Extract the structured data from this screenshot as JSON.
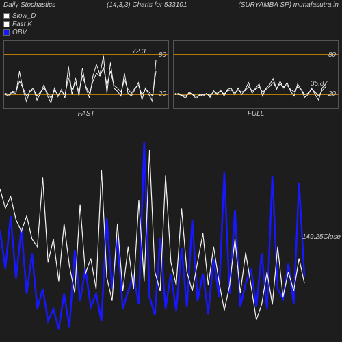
{
  "header": {
    "title": "Daily Stochastics",
    "params": "(14,3,3) Charts for 533101",
    "symbol": "(SURYAMBA SP) munafasutra.in"
  },
  "legend": {
    "slow_d": {
      "label": "Slow_D",
      "color": "#ffffff"
    },
    "fast_k": {
      "label": "Fast K",
      "color": "#ffffff"
    },
    "obv": {
      "label": "OBV",
      "color": "#1818ff"
    }
  },
  "colors": {
    "bg": "#1e1d1d",
    "panel_border": "#555555",
    "grid_ref": "#cc8800",
    "text": "#cccccc",
    "line_white": "#f5f5f5",
    "line_blue": "#1818ff"
  },
  "fast_panel": {
    "label": "FAST",
    "ylim": [
      0,
      100
    ],
    "ref_lines": [
      20,
      80
    ],
    "value_label": "72.3",
    "axis_ticks": [
      "20",
      "80"
    ],
    "series_a": [
      20,
      18,
      23,
      22,
      55,
      28,
      10,
      26,
      30,
      12,
      22,
      35,
      18,
      8,
      30,
      17,
      28,
      15,
      62,
      20,
      45,
      18,
      60,
      30,
      15,
      48,
      65,
      50,
      78,
      22,
      68,
      30,
      25,
      18,
      52,
      22,
      18,
      28,
      38,
      12,
      30,
      20,
      10,
      72
    ],
    "series_b": [
      22,
      20,
      25,
      24,
      40,
      30,
      18,
      24,
      28,
      18,
      24,
      30,
      22,
      15,
      26,
      20,
      25,
      20,
      45,
      28,
      38,
      25,
      48,
      32,
      22,
      40,
      52,
      48,
      60,
      35,
      55,
      34,
      30,
      24,
      42,
      28,
      22,
      30,
      34,
      20,
      28,
      24,
      18,
      55
    ]
  },
  "full_panel": {
    "label": "FULL",
    "ylim": [
      0,
      100
    ],
    "ref_lines": [
      20,
      80
    ],
    "value_label": "35.87",
    "axis_ticks": [
      "20",
      "80"
    ],
    "series_a": [
      20,
      22,
      18,
      15,
      24,
      20,
      14,
      20,
      18,
      22,
      16,
      26,
      20,
      27,
      18,
      28,
      30,
      20,
      30,
      20,
      28,
      38,
      22,
      30,
      36,
      18,
      30,
      35,
      44,
      28,
      40,
      30,
      38,
      25,
      18,
      36,
      28,
      16,
      20,
      30,
      20,
      12,
      30,
      36
    ],
    "series_b": [
      22,
      20,
      19,
      18,
      22,
      21,
      17,
      19,
      20,
      21,
      19,
      24,
      22,
      25,
      21,
      26,
      27,
      23,
      27,
      24,
      26,
      32,
      26,
      28,
      32,
      24,
      28,
      32,
      38,
      30,
      36,
      32,
      34,
      28,
      24,
      32,
      28,
      20,
      22,
      28,
      24,
      18,
      26,
      32
    ]
  },
  "main": {
    "close_label": "149.25Close",
    "close_series": [
      198,
      188,
      194,
      182,
      176,
      184,
      172,
      168,
      204,
      160,
      172,
      150,
      180,
      158,
      144,
      190,
      154,
      162,
      146,
      208,
      152,
      140,
      180,
      145,
      168,
      146,
      192,
      150,
      218,
      155,
      145,
      205,
      160,
      148,
      188,
      155,
      145,
      160,
      175,
      148,
      168,
      150,
      135,
      148,
      172,
      144,
      165,
      148,
      130,
      138,
      155,
      138,
      168,
      142,
      155,
      145,
      162,
      149
    ],
    "obv_series": [
      118,
      80,
      132,
      70,
      120,
      55,
      95,
      40,
      60,
      28,
      40,
      20,
      55,
      22,
      98,
      48,
      80,
      42,
      55,
      28,
      130,
      60,
      110,
      40,
      58,
      72,
      45,
      205,
      52,
      34,
      110,
      40,
      75,
      38,
      100,
      42,
      128,
      48,
      75,
      35,
      90,
      52,
      175,
      55,
      138,
      42,
      65,
      80,
      42,
      95,
      40,
      172,
      60,
      50,
      85,
      45,
      165,
      72
    ],
    "close_ylim": [
      120,
      230
    ],
    "obv_ylim": [
      10,
      220
    ]
  }
}
